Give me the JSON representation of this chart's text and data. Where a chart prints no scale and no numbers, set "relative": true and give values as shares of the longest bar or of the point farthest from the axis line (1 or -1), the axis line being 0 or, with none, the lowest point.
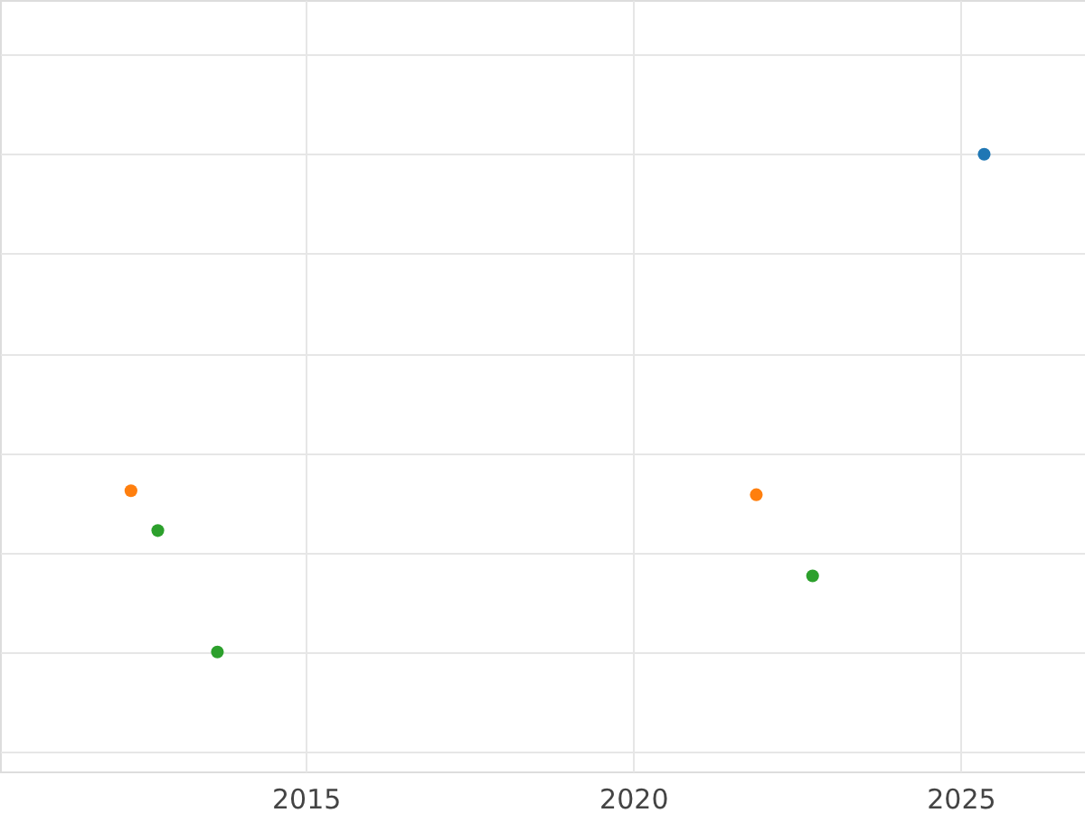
{
  "chart_data": {
    "type": "scatter",
    "relative": true,
    "xlim": [
      2010.33,
      2026.9
    ],
    "xticks": [
      2015,
      2020,
      2025
    ],
    "grid": true,
    "legend": false,
    "marker": "circle",
    "series": [
      {
        "color": "#1f77b4",
        "x": [
          2025.36
        ],
        "values": [
          1
        ]
      },
      {
        "color": "#ff7f0e",
        "x": [
          2012.33,
          2021.88
        ],
        "values": [
          0.324,
          0.316
        ]
      },
      {
        "color": "#2ca02c",
        "x": [
          2012.74,
          2013.65,
          2022.74
        ],
        "values": [
          0.244,
          0,
          0.153
        ]
      }
    ]
  }
}
